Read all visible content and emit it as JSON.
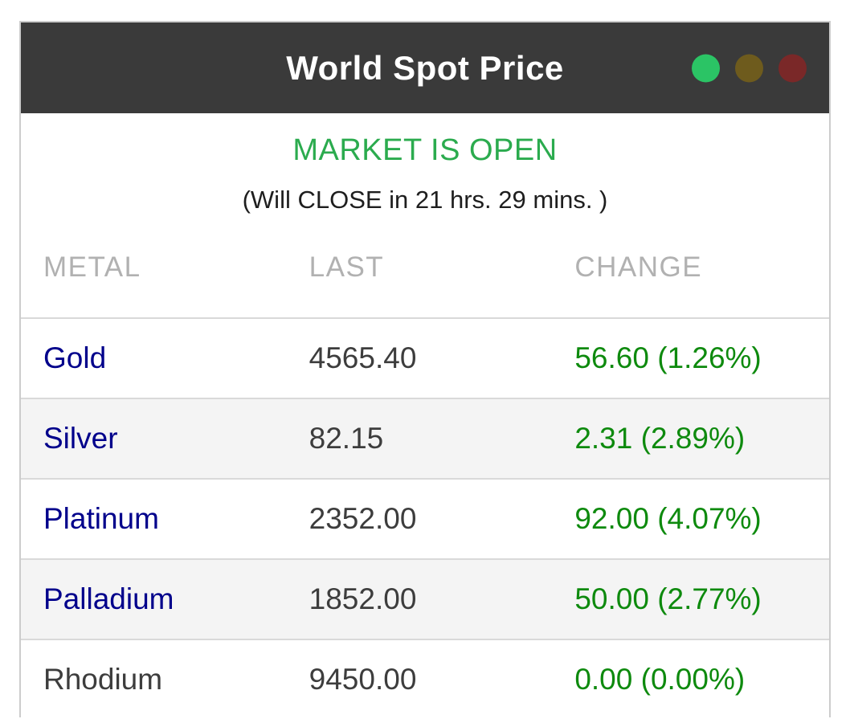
{
  "window": {
    "title": "World Spot Price",
    "traffic_lights": [
      {
        "name": "green-dot",
        "color": "#2bc465"
      },
      {
        "name": "olive-dot",
        "color": "#6e5b1d"
      },
      {
        "name": "red-dot",
        "color": "#7a2828"
      }
    ]
  },
  "status": {
    "market_state": "MARKET IS OPEN",
    "market_state_color": "#2bab4e",
    "countdown": "(Will CLOSE in 21 hrs. 29 mins. )"
  },
  "table": {
    "columns": [
      "METAL",
      "LAST",
      "CHANGE"
    ],
    "rows": [
      {
        "metal": "Gold",
        "last": "4565.40",
        "change": "56.60 (1.26%)",
        "link": true
      },
      {
        "metal": "Silver",
        "last": "82.15",
        "change": "2.31 (2.89%)",
        "link": true
      },
      {
        "metal": "Platinum",
        "last": "2352.00",
        "change": "92.00 (4.07%)",
        "link": true
      },
      {
        "metal": "Palladium",
        "last": "1852.00",
        "change": "50.00 (2.77%)",
        "link": true
      },
      {
        "metal": "Rhodium",
        "last": "9450.00",
        "change": "0.00 (0.00%)",
        "link": false
      }
    ]
  },
  "colors": {
    "titlebar_bg": "#3a3a3a",
    "title_text": "#ffffff",
    "border": "#cccccc",
    "row_separator": "#d9d9d9",
    "alt_row_bg": "#f4f4f4",
    "column_header_text": "#b1b1b1",
    "metal_link": "#00008b",
    "value_text": "#3d3d3d",
    "change_green": "#0e8a0e"
  }
}
